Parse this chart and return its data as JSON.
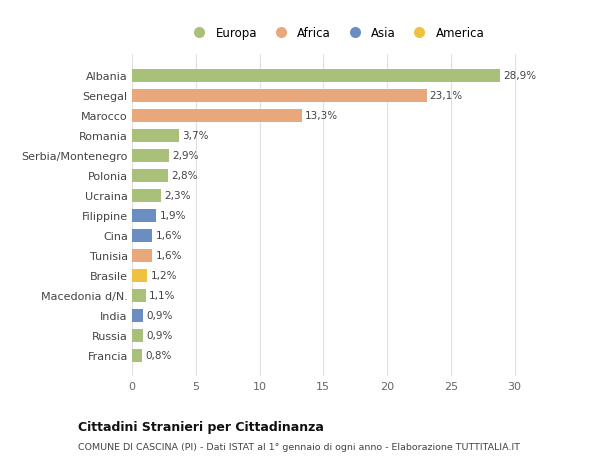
{
  "countries": [
    "Albania",
    "Senegal",
    "Marocco",
    "Romania",
    "Serbia/Montenegro",
    "Polonia",
    "Ucraina",
    "Filippine",
    "Cina",
    "Tunisia",
    "Brasile",
    "Macedonia d/N.",
    "India",
    "Russia",
    "Francia"
  ],
  "values": [
    28.9,
    23.1,
    13.3,
    3.7,
    2.9,
    2.8,
    2.3,
    1.9,
    1.6,
    1.6,
    1.2,
    1.1,
    0.9,
    0.9,
    0.8
  ],
  "labels": [
    "28,9%",
    "23,1%",
    "13,3%",
    "3,7%",
    "2,9%",
    "2,8%",
    "2,3%",
    "1,9%",
    "1,6%",
    "1,6%",
    "1,2%",
    "1,1%",
    "0,9%",
    "0,9%",
    "0,8%"
  ],
  "continents": [
    "Europa",
    "Africa",
    "Africa",
    "Europa",
    "Europa",
    "Europa",
    "Europa",
    "Asia",
    "Asia",
    "Africa",
    "America",
    "Europa",
    "Asia",
    "Europa",
    "Europa"
  ],
  "colors": {
    "Europa": "#a8c07a",
    "Africa": "#e8a87c",
    "Asia": "#6b8ec2",
    "America": "#f0c040"
  },
  "legend_order": [
    "Europa",
    "Africa",
    "Asia",
    "America"
  ],
  "title": "Cittadini Stranieri per Cittadinanza",
  "subtitle": "COMUNE DI CASCINA (PI) - Dati ISTAT al 1° gennaio di ogni anno - Elaborazione TUTTITALIA.IT",
  "xlim": [
    0,
    32
  ],
  "xticks": [
    0,
    5,
    10,
    15,
    20,
    25,
    30
  ],
  "bg_color": "#ffffff",
  "grid_color": "#e0e0e0"
}
